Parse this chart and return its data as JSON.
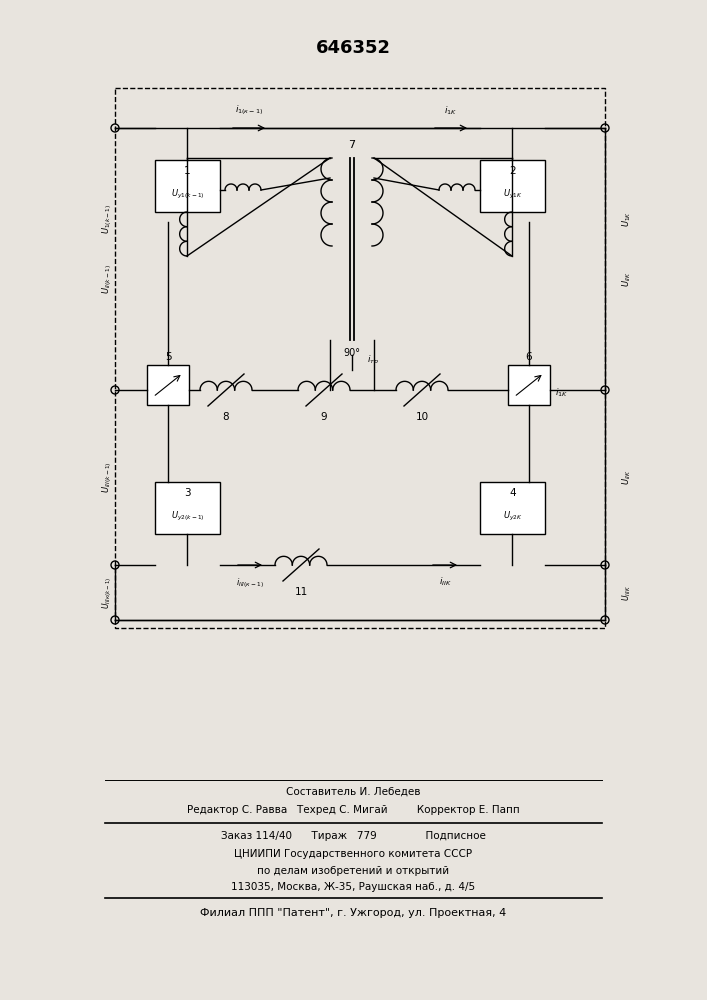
{
  "title": "646352",
  "bg_color": "#e8e4de",
  "fig_bg": "#e8e4de",
  "footer": {
    "line1": "Составитель И. Лебедев",
    "line2": "Редактор С. Равва   Техред С. Мигай         Корректор Е. Папп",
    "line3": "Заказ 114/40      Тираж   779               Подписное",
    "line4": "ЦНИИПИ Государственного комитета СССР",
    "line5": "по делам изобретений и открытий",
    "line6": "113035, Москва, Ж-35, Раушская наб., д. 4/5",
    "line7": "Филиал ППП \"Патент\", г. Ужгород, ул. Проектная, 4"
  }
}
